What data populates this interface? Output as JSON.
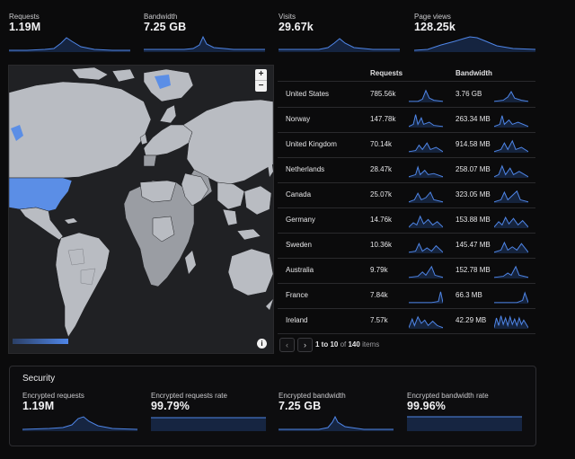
{
  "stats": [
    {
      "label": "Requests",
      "value": "1.19M"
    },
    {
      "label": "Bandwidth",
      "value": "7.25 GB"
    },
    {
      "label": "Visits",
      "value": "29.67k"
    },
    {
      "label": "Page views",
      "value": "128.25k"
    }
  ],
  "map": {
    "zoom_in": "+",
    "zoom_out": "−",
    "info": "i",
    "legend": "",
    "highlight_color": "#5b8ee6"
  },
  "table": {
    "columns": {
      "country": "",
      "requests": "Requests",
      "bandwidth": "Bandwidth"
    },
    "rows": [
      {
        "country": "United States",
        "requests": "785.56k",
        "bandwidth": "3.76 GB"
      },
      {
        "country": "Norway",
        "requests": "147.78k",
        "bandwidth": "263.34 MB"
      },
      {
        "country": "United Kingdom",
        "requests": "70.14k",
        "bandwidth": "914.58 MB"
      },
      {
        "country": "Netherlands",
        "requests": "28.47k",
        "bandwidth": "258.07 MB"
      },
      {
        "country": "Canada",
        "requests": "25.07k",
        "bandwidth": "323.05 MB"
      },
      {
        "country": "Germany",
        "requests": "14.76k",
        "bandwidth": "153.88 MB"
      },
      {
        "country": "Sweden",
        "requests": "10.36k",
        "bandwidth": "145.47 MB"
      },
      {
        "country": "Australia",
        "requests": "9.79k",
        "bandwidth": "152.78 MB"
      },
      {
        "country": "France",
        "requests": "7.84k",
        "bandwidth": "66.3 MB"
      },
      {
        "country": "Ireland",
        "requests": "7.57k",
        "bandwidth": "42.29 MB"
      }
    ]
  },
  "pagination": {
    "prev": "‹",
    "next": "›",
    "range": "1 to 10",
    "of": "of",
    "total": "140",
    "unit": "items"
  },
  "security": {
    "title": "Security",
    "metrics": [
      {
        "label": "Encrypted requests",
        "value": "1.19M"
      },
      {
        "label": "Encrypted requests rate",
        "value": "99.79%"
      },
      {
        "label": "Encrypted bandwidth",
        "value": "7.25 GB"
      },
      {
        "label": "Encrypted bandwidth rate",
        "value": "99.96%"
      }
    ]
  },
  "colors": {
    "accent": "#4f86e8",
    "background": "#0b0b0c",
    "land": "#b9bcc2",
    "highlight": "#5b8ee6"
  }
}
